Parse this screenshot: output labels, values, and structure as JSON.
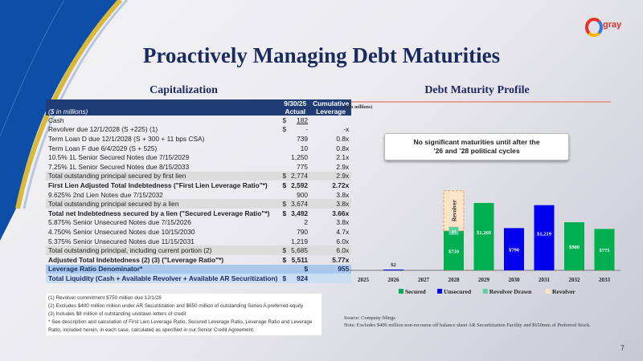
{
  "title": "Proactively Managing Debt Maturities",
  "logo_text": "gray",
  "capitalization": {
    "heading": "Capitalization",
    "header": {
      "units": "($ in millions)",
      "col1_line1": "9/30/25",
      "col1_line2": "Actual",
      "col2_line1": "Cumulative",
      "col2_line2": "Leverage"
    },
    "rows": [
      {
        "label": "Cash",
        "dollar": "$",
        "value": "182",
        "lev": "",
        "style": ""
      },
      {
        "label": "Revolver due 12/1/2028 (S +225) (1)",
        "dollar": "$",
        "value": "-",
        "lev": "-x",
        "style": ""
      },
      {
        "label": "Term Loan D due 12/1/2028 (S + 300 + 11 bps CSA)",
        "dollar": "",
        "value": "739",
        "lev": "0.8x",
        "style": ""
      },
      {
        "label": "Term Loan F due 6/4/2029 (S + 525)",
        "dollar": "",
        "value": "10",
        "lev": "0.8x",
        "style": ""
      },
      {
        "label": "10.5% 1L Senior Secured Notes due 7/15/2029",
        "dollar": "",
        "value": "1,250",
        "lev": "2.1x",
        "style": ""
      },
      {
        "label": "7.25% 1L Senior Secured Notes due 8/15/2033",
        "dollar": "",
        "value": "775",
        "lev": "2.9x",
        "style": ""
      },
      {
        "label": "Total outstanding principal secured by first lien",
        "dollar": "$",
        "value": "2,774",
        "lev": "2.9x",
        "style": "g"
      },
      {
        "label": "First Lien Adjusted Total Indebtedness (\"First Lien Leverage Ratio\"*)",
        "dollar": "$",
        "value": "2,592",
        "lev": "2.72x",
        "style": "b"
      },
      {
        "label": "9.625% 2nd Lien Notes due 7/15/2032",
        "dollar": "",
        "value": "900",
        "lev": "3.8x",
        "style": ""
      },
      {
        "label": "Total outstanding principal secured by a lien",
        "dollar": "$",
        "value": "3,674",
        "lev": "3.8x",
        "style": "g"
      },
      {
        "label": "Total net Indebtedness secured by a lien (\"Secured Leverage Ratio\"*)",
        "dollar": "$",
        "value": "3,492",
        "lev": "3.66x",
        "style": "b"
      },
      {
        "label": "5.875% Senior Unsecured Notes due 7/15/2026",
        "dollar": "",
        "value": "2",
        "lev": "3.8x",
        "style": ""
      },
      {
        "label": "4.750% Senior Unsecured Notes due 10/15/2030",
        "dollar": "",
        "value": "790",
        "lev": "4.7x",
        "style": ""
      },
      {
        "label": "5.375% Senior Unsecured Notes due 11/15/2031",
        "dollar": "",
        "value": "1,219",
        "lev": "6.0x",
        "style": ""
      },
      {
        "label": "Total outstanding principal, including current portion (2)",
        "dollar": "$",
        "value": "5,685",
        "lev": "6.0x",
        "style": "g"
      },
      {
        "label": "Adjusted Total Indebtedness (2) (3) (\"Leverage Ratio\"*)",
        "dollar": "$",
        "value": "5,511",
        "lev": "5.77x",
        "style": "b"
      }
    ],
    "denominator": {
      "label": "Leverage Ratio Denominator*",
      "dollar": "$",
      "value": "955"
    },
    "liquidity": {
      "label": "Total Liquidity (Cash + Available Revolver + Available AR Securitization)",
      "dollar": "$",
      "value": "924"
    },
    "footnotes": [
      "(1) Revolver commitment $750 million due 12/1/28",
      "(2) Excludes $400 million million under AR Securitization and $650 million of outstanding Series A preferred equity",
      "(3) Includes $8 million of outstanding undrawn letters of credit",
      "* See description and calculation of First Lien Leverage Ratio, Secured Leverage Ratio, Leverage Ratio and Leverage Ratio, included herein, in each case, calculated as specified in our Senior Credit Agreement."
    ]
  },
  "maturity": {
    "heading": "Debt Maturity Profile",
    "units": "($ in millions)",
    "callout_line1": "No significant maturities until after the",
    "callout_line2": "’26 and ’28 political cycles",
    "source": "Source: Company filings",
    "note": "Note: Excludes $400 million non-recourse off balance sheet AR Securitization Facility and $650mm of Preferred Stock."
  },
  "chart_data": {
    "type": "bar",
    "stacked": true,
    "categories": [
      "2025",
      "2026",
      "2027",
      "2028",
      "2029",
      "2030",
      "2031",
      "2032",
      "2033"
    ],
    "series": [
      {
        "name": "Secured",
        "color": "#00b050",
        "values": [
          0,
          0,
          0,
          739,
          1260,
          0,
          0,
          900,
          775
        ]
      },
      {
        "name": "Unsecured",
        "color": "#0000ee",
        "values": [
          0,
          2,
          0,
          0,
          0,
          790,
          1219,
          0,
          0
        ]
      },
      {
        "name": "Revolver Drawn",
        "color": "#5fcf9f",
        "values": [
          0,
          0,
          0,
          0,
          0,
          0,
          0,
          0,
          0
        ]
      },
      {
        "name": "Revolver",
        "color": "#fbe3c8",
        "values": [
          0,
          0,
          0,
          750,
          0,
          0,
          0,
          0,
          0
        ]
      }
    ],
    "data_labels": [
      "",
      "$2",
      "",
      "$739",
      "$1,260",
      "$790",
      "$1,219",
      "$900",
      "$775"
    ],
    "revolver_drawn_label": "$0",
    "revolver_bar_label": "Revolver",
    "legend": "bottom",
    "grid": false
  },
  "page_number": "7"
}
